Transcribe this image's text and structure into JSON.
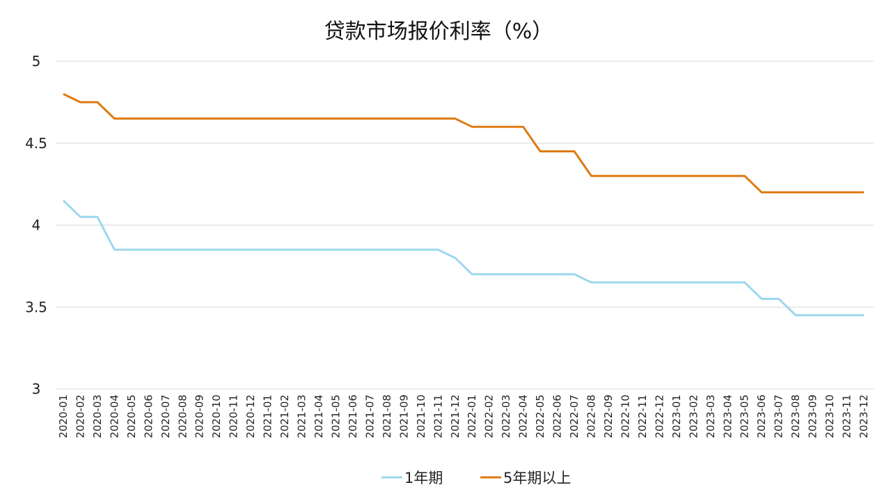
{
  "chart_data": {
    "type": "line",
    "title": "贷款市场报价利率（%）",
    "xlabel": "",
    "ylabel": "",
    "ylim": [
      3,
      5
    ],
    "yticks": [
      "3",
      "3.5",
      "4",
      "4.5",
      "5"
    ],
    "grid": true,
    "legend_position": "bottom",
    "categories": [
      "2020-01",
      "2020-02",
      "2020-03",
      "2020-04",
      "2020-05",
      "2020-06",
      "2020-07",
      "2020-08",
      "2020-09",
      "2020-10",
      "2020-11",
      "2020-12",
      "2021-01",
      "2021-02",
      "2021-03",
      "2021-04",
      "2021-05",
      "2021-06",
      "2021-07",
      "2021-08",
      "2021-09",
      "2021-10",
      "2021-11",
      "2021-12",
      "2022-01",
      "2022-02",
      "2022-03",
      "2022-04",
      "2022-05",
      "2022-06",
      "2022-07",
      "2022-08",
      "2022-09",
      "2022-10",
      "2022-11",
      "2022-12",
      "2023-01",
      "2023-02",
      "2023-03",
      "2023-04",
      "2023-05",
      "2023-06",
      "2023-07",
      "2023-08",
      "2023-09",
      "2023-10",
      "2023-11",
      "2023-12"
    ],
    "series": [
      {
        "name": "1年期",
        "color": "#9dd6ee",
        "values": [
          4.15,
          4.05,
          4.05,
          3.85,
          3.85,
          3.85,
          3.85,
          3.85,
          3.85,
          3.85,
          3.85,
          3.85,
          3.85,
          3.85,
          3.85,
          3.85,
          3.85,
          3.85,
          3.85,
          3.85,
          3.85,
          3.85,
          3.85,
          3.8,
          3.7,
          3.7,
          3.7,
          3.7,
          3.7,
          3.7,
          3.7,
          3.65,
          3.65,
          3.65,
          3.65,
          3.65,
          3.65,
          3.65,
          3.65,
          3.65,
          3.65,
          3.55,
          3.55,
          3.45,
          3.45,
          3.45,
          3.45,
          3.45
        ]
      },
      {
        "name": "5年期以上",
        "color": "#de7a12",
        "values": [
          4.8,
          4.75,
          4.75,
          4.65,
          4.65,
          4.65,
          4.65,
          4.65,
          4.65,
          4.65,
          4.65,
          4.65,
          4.65,
          4.65,
          4.65,
          4.65,
          4.65,
          4.65,
          4.65,
          4.65,
          4.65,
          4.65,
          4.65,
          4.65,
          4.6,
          4.6,
          4.6,
          4.6,
          4.45,
          4.45,
          4.45,
          4.3,
          4.3,
          4.3,
          4.3,
          4.3,
          4.3,
          4.3,
          4.3,
          4.3,
          4.3,
          4.2,
          4.2,
          4.2,
          4.2,
          4.2,
          4.2,
          4.2
        ]
      }
    ]
  }
}
